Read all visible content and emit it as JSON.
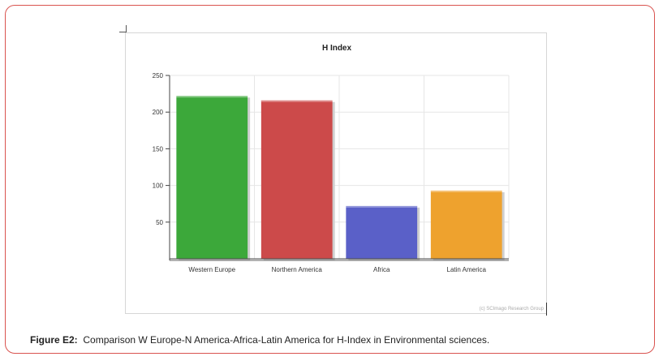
{
  "chart_data": {
    "type": "bar",
    "title": "H Index",
    "categories": [
      "Western Europe",
      "Northern America",
      "Africa",
      "Latin America"
    ],
    "values": [
      222,
      216,
      72,
      93
    ],
    "colors": [
      "#3ca83a",
      "#cc4a4a",
      "#5a60c8",
      "#eea22e"
    ],
    "yticks": [
      50,
      100,
      150,
      200,
      250
    ],
    "ylim": [
      0,
      250
    ],
    "grid": true,
    "watermark": "(c) SCImago Research Group"
  },
  "caption": {
    "label": "Figure E2:",
    "text": "Comparison W Europe-N America-Africa-Latin America for H-Index in Environmental sciences."
  }
}
